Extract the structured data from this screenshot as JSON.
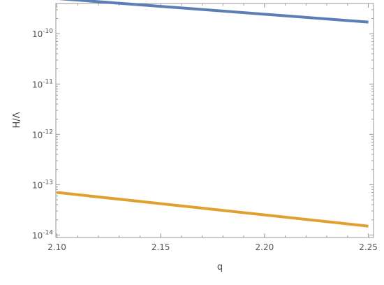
{
  "chart_data": {
    "type": "line",
    "title": "",
    "xlabel": "q",
    "ylabel": "H/Λ",
    "xlim": [
      2.0995,
      2.2525
    ],
    "ylim": [
      -14.05,
      -9.4
    ],
    "yscale": "log",
    "x_ticks": [
      2.1,
      2.15,
      2.2,
      2.25
    ],
    "x_tick_labels": [
      "2.10",
      "2.15",
      "2.20",
      "2.25"
    ],
    "y_ticks": [
      -14,
      -13,
      -12,
      -11,
      -10
    ],
    "y_tick_base": "10",
    "y_tick_exponents": [
      "-14",
      "-13",
      "-12",
      "-11",
      "-10"
    ],
    "grid": false,
    "series": [
      {
        "color": "#5b7fb5",
        "x": [
          2.1,
          2.25
        ],
        "y": [
          5e-10,
          1.7e-10
        ]
      },
      {
        "color": "#e0a030",
        "x": [
          2.1,
          2.25
        ],
        "y": [
          7e-14,
          1.5e-14
        ]
      }
    ]
  }
}
